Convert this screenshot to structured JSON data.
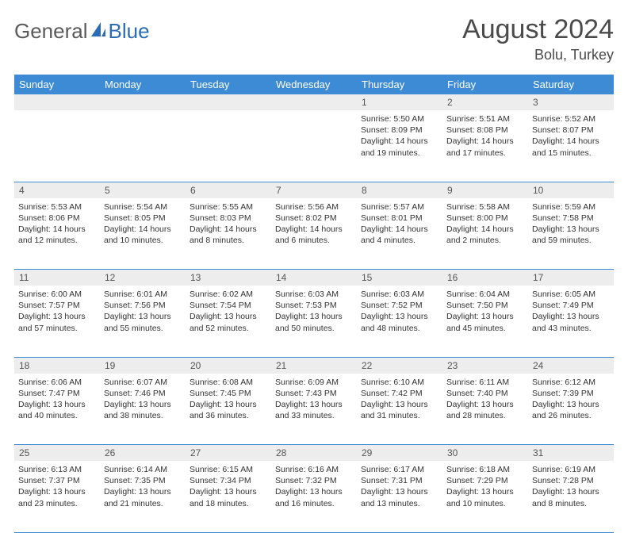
{
  "logo": {
    "text1": "General",
    "text2": "Blue",
    "sail_color": "#2a6db5"
  },
  "header": {
    "title": "August 2024",
    "location": "Bolu, Turkey"
  },
  "colors": {
    "header_bg": "#3d8bd4",
    "header_text": "#ffffff",
    "daynum_bg": "#ededed",
    "border": "#3d8bd4",
    "text": "#333333"
  },
  "typography": {
    "title_fontsize": 34,
    "location_fontsize": 18,
    "header_fontsize": 13,
    "cell_fontsize": 10.5
  },
  "daynames": [
    "Sunday",
    "Monday",
    "Tuesday",
    "Wednesday",
    "Thursday",
    "Friday",
    "Saturday"
  ],
  "weeks": [
    {
      "nums": [
        "",
        "",
        "",
        "",
        "1",
        "2",
        "3"
      ],
      "cells": [
        null,
        null,
        null,
        null,
        {
          "sunrise": "5:50 AM",
          "sunset": "8:09 PM",
          "daylight": "14 hours and 19 minutes."
        },
        {
          "sunrise": "5:51 AM",
          "sunset": "8:08 PM",
          "daylight": "14 hours and 17 minutes."
        },
        {
          "sunrise": "5:52 AM",
          "sunset": "8:07 PM",
          "daylight": "14 hours and 15 minutes."
        }
      ]
    },
    {
      "nums": [
        "4",
        "5",
        "6",
        "7",
        "8",
        "9",
        "10"
      ],
      "cells": [
        {
          "sunrise": "5:53 AM",
          "sunset": "8:06 PM",
          "daylight": "14 hours and 12 minutes."
        },
        {
          "sunrise": "5:54 AM",
          "sunset": "8:05 PM",
          "daylight": "14 hours and 10 minutes."
        },
        {
          "sunrise": "5:55 AM",
          "sunset": "8:03 PM",
          "daylight": "14 hours and 8 minutes."
        },
        {
          "sunrise": "5:56 AM",
          "sunset": "8:02 PM",
          "daylight": "14 hours and 6 minutes."
        },
        {
          "sunrise": "5:57 AM",
          "sunset": "8:01 PM",
          "daylight": "14 hours and 4 minutes."
        },
        {
          "sunrise": "5:58 AM",
          "sunset": "8:00 PM",
          "daylight": "14 hours and 2 minutes."
        },
        {
          "sunrise": "5:59 AM",
          "sunset": "7:58 PM",
          "daylight": "13 hours and 59 minutes."
        }
      ]
    },
    {
      "nums": [
        "11",
        "12",
        "13",
        "14",
        "15",
        "16",
        "17"
      ],
      "cells": [
        {
          "sunrise": "6:00 AM",
          "sunset": "7:57 PM",
          "daylight": "13 hours and 57 minutes."
        },
        {
          "sunrise": "6:01 AM",
          "sunset": "7:56 PM",
          "daylight": "13 hours and 55 minutes."
        },
        {
          "sunrise": "6:02 AM",
          "sunset": "7:54 PM",
          "daylight": "13 hours and 52 minutes."
        },
        {
          "sunrise": "6:03 AM",
          "sunset": "7:53 PM",
          "daylight": "13 hours and 50 minutes."
        },
        {
          "sunrise": "6:03 AM",
          "sunset": "7:52 PM",
          "daylight": "13 hours and 48 minutes."
        },
        {
          "sunrise": "6:04 AM",
          "sunset": "7:50 PM",
          "daylight": "13 hours and 45 minutes."
        },
        {
          "sunrise": "6:05 AM",
          "sunset": "7:49 PM",
          "daylight": "13 hours and 43 minutes."
        }
      ]
    },
    {
      "nums": [
        "18",
        "19",
        "20",
        "21",
        "22",
        "23",
        "24"
      ],
      "cells": [
        {
          "sunrise": "6:06 AM",
          "sunset": "7:47 PM",
          "daylight": "13 hours and 40 minutes."
        },
        {
          "sunrise": "6:07 AM",
          "sunset": "7:46 PM",
          "daylight": "13 hours and 38 minutes."
        },
        {
          "sunrise": "6:08 AM",
          "sunset": "7:45 PM",
          "daylight": "13 hours and 36 minutes."
        },
        {
          "sunrise": "6:09 AM",
          "sunset": "7:43 PM",
          "daylight": "13 hours and 33 minutes."
        },
        {
          "sunrise": "6:10 AM",
          "sunset": "7:42 PM",
          "daylight": "13 hours and 31 minutes."
        },
        {
          "sunrise": "6:11 AM",
          "sunset": "7:40 PM",
          "daylight": "13 hours and 28 minutes."
        },
        {
          "sunrise": "6:12 AM",
          "sunset": "7:39 PM",
          "daylight": "13 hours and 26 minutes."
        }
      ]
    },
    {
      "nums": [
        "25",
        "26",
        "27",
        "28",
        "29",
        "30",
        "31"
      ],
      "cells": [
        {
          "sunrise": "6:13 AM",
          "sunset": "7:37 PM",
          "daylight": "13 hours and 23 minutes."
        },
        {
          "sunrise": "6:14 AM",
          "sunset": "7:35 PM",
          "daylight": "13 hours and 21 minutes."
        },
        {
          "sunrise": "6:15 AM",
          "sunset": "7:34 PM",
          "daylight": "13 hours and 18 minutes."
        },
        {
          "sunrise": "6:16 AM",
          "sunset": "7:32 PM",
          "daylight": "13 hours and 16 minutes."
        },
        {
          "sunrise": "6:17 AM",
          "sunset": "7:31 PM",
          "daylight": "13 hours and 13 minutes."
        },
        {
          "sunrise": "6:18 AM",
          "sunset": "7:29 PM",
          "daylight": "13 hours and 10 minutes."
        },
        {
          "sunrise": "6:19 AM",
          "sunset": "7:28 PM",
          "daylight": "13 hours and 8 minutes."
        }
      ]
    }
  ],
  "labels": {
    "sunrise": "Sunrise: ",
    "sunset": "Sunset: ",
    "daylight": "Daylight: "
  }
}
